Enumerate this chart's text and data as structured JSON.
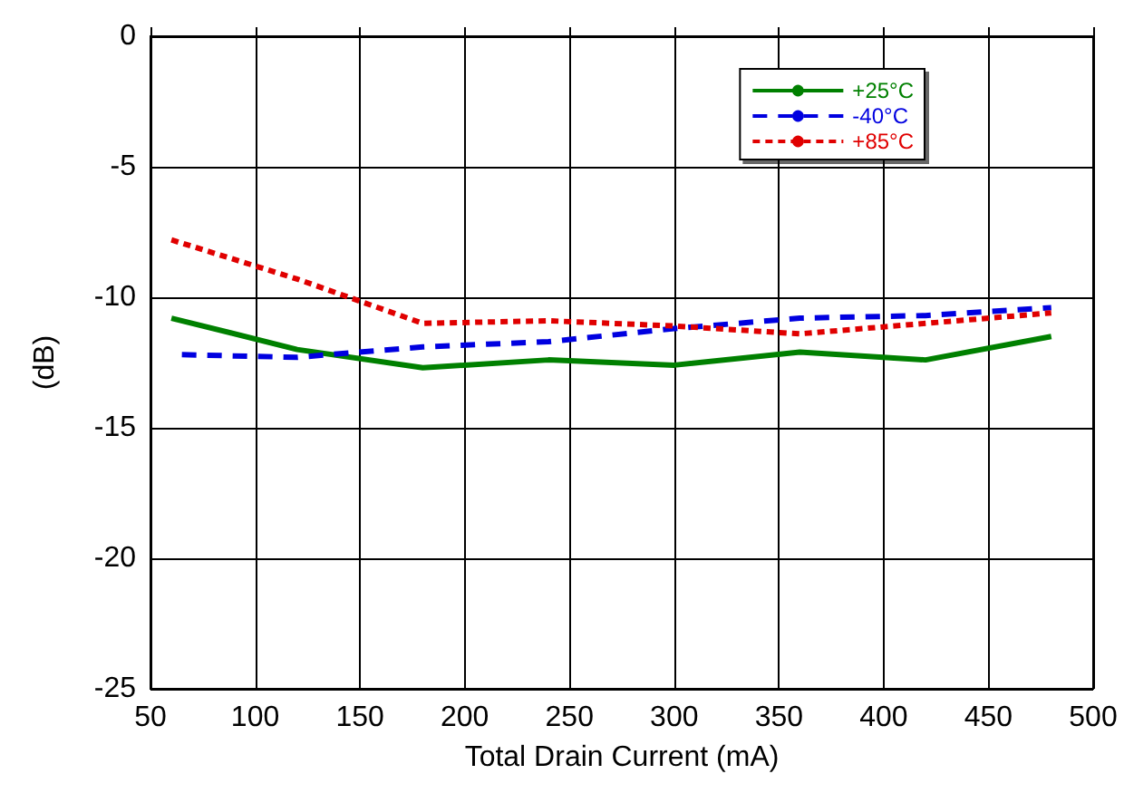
{
  "chart_data": {
    "type": "line",
    "xlabel": "Total Drain Current (mA)",
    "ylabel": "(dB)",
    "xlim": [
      50,
      500
    ],
    "xticks": [
      50,
      100,
      150,
      200,
      250,
      300,
      350,
      400,
      450,
      500
    ],
    "ylim": [
      -25,
      0
    ],
    "yticks": [
      -25,
      -20,
      -15,
      -10,
      -5,
      0
    ],
    "grid": true,
    "legend": "top right",
    "marker": "none",
    "series": [
      {
        "name": "+25°C",
        "color": "#008000",
        "line_style": "solid",
        "x": [
          60,
          120,
          180,
          240,
          300,
          360,
          420,
          480
        ],
        "values": [
          -10.8,
          -12,
          -12.7,
          -12.4,
          -12.6,
          -12.1,
          -12.4,
          -11.5
        ]
      },
      {
        "name": "-40°C",
        "color": "#0000e0",
        "line_style": "dashed",
        "x": [
          65,
          120,
          180,
          240,
          300,
          360,
          420,
          480
        ],
        "values": [
          -12.2,
          -12.3,
          -11.9,
          -11.7,
          -11.2,
          -10.8,
          -10.7,
          -10.4
        ]
      },
      {
        "name": "+85°C",
        "color": "#e00000",
        "line_style": "dotted",
        "x": [
          60,
          120,
          180,
          240,
          300,
          360,
          420,
          480
        ],
        "values": [
          -7.8,
          -9.3,
          -11,
          -10.9,
          -11.1,
          -11.4,
          -11,
          -10.6
        ]
      }
    ]
  }
}
